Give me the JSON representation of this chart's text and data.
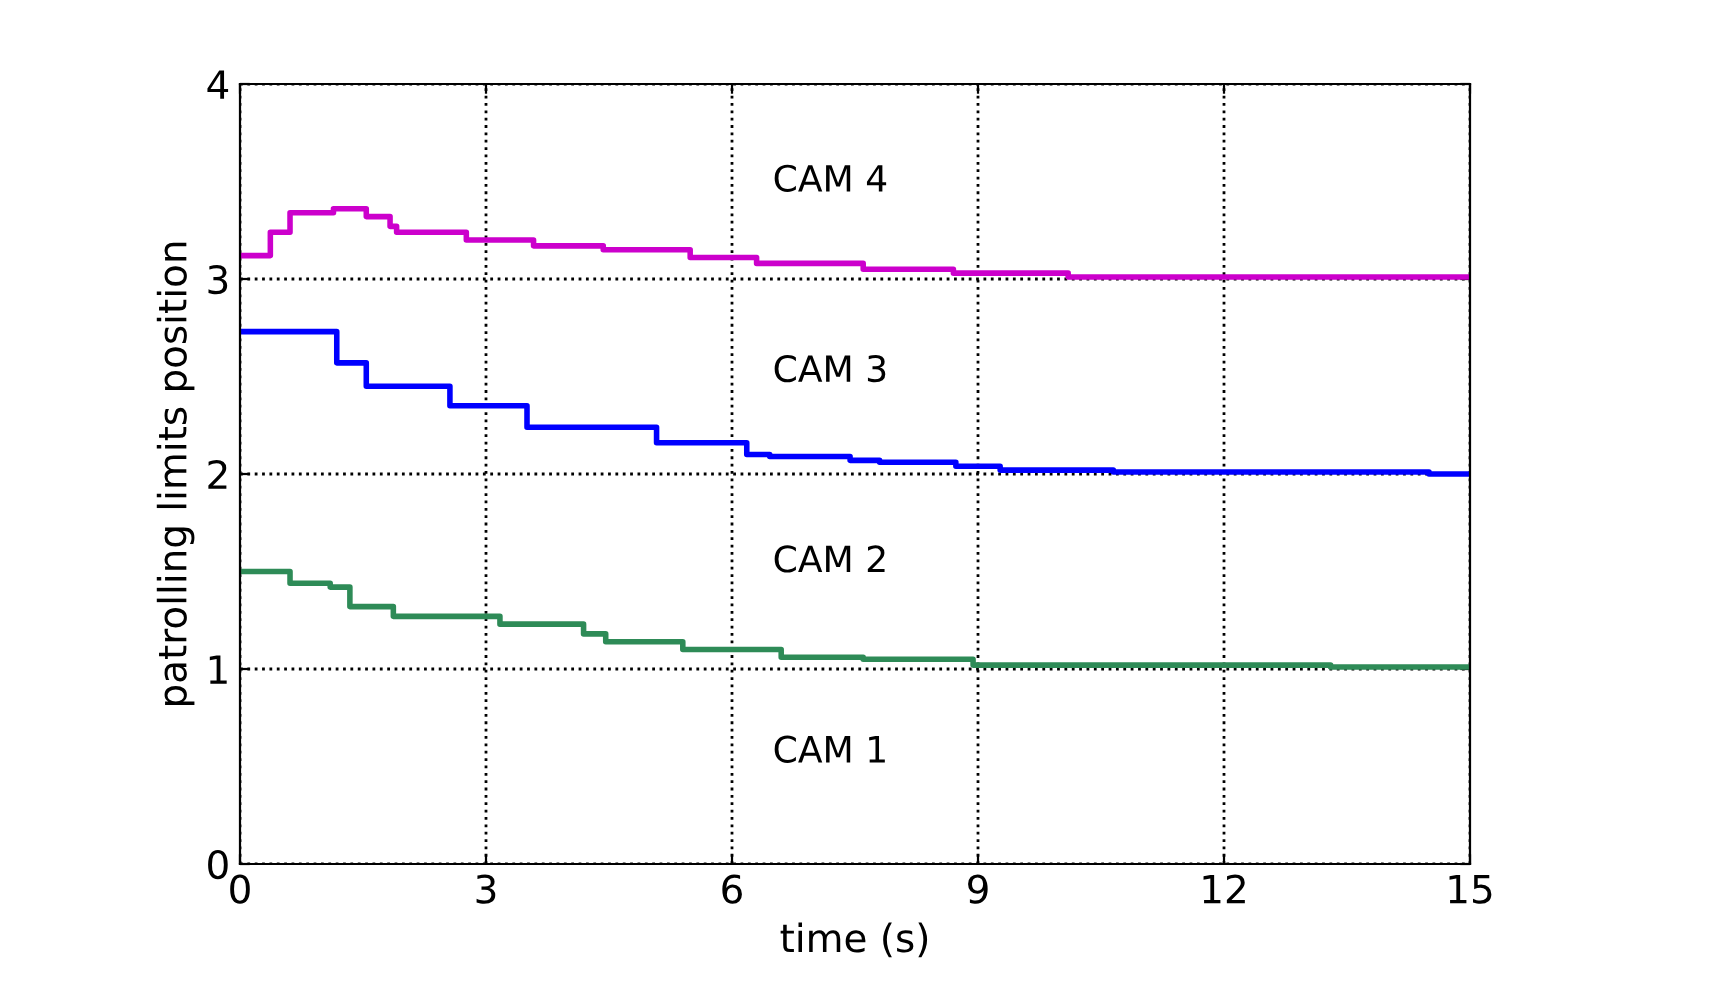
{
  "chart_data": {
    "type": "step",
    "xlabel": "time (s)",
    "ylabel": "patrolling limits position",
    "xlim": [
      0,
      15
    ],
    "ylim": [
      0,
      4
    ],
    "xticks": [
      0,
      3,
      6,
      9,
      12,
      15
    ],
    "yticks": [
      0,
      1,
      2,
      3,
      4
    ],
    "grid": true,
    "line_style": "solid",
    "marker": "none",
    "annotations": [
      "CAM 4",
      "CAM 3",
      "CAM 2",
      "CAM 1"
    ],
    "series": [
      {
        "color": "#cc00cc",
        "x": [
          0,
          0.37,
          0.61,
          1.14,
          1.54,
          1.83,
          1.91,
          2.76,
          3.58,
          4.43,
          5.49,
          6.3,
          7.6,
          8.7,
          10.1,
          15
        ],
        "values": [
          3.12,
          3.24,
          3.34,
          3.36,
          3.32,
          3.27,
          3.24,
          3.2,
          3.17,
          3.15,
          3.11,
          3.08,
          3.05,
          3.03,
          3.01,
          3.01
        ]
      },
      {
        "color": "#0000ff",
        "x": [
          0,
          1.18,
          1.54,
          2.56,
          3.5,
          5.08,
          6.18,
          6.46,
          7.44,
          7.8,
          8.73,
          9.27,
          10.65,
          14.5,
          15
        ],
        "values": [
          2.73,
          2.57,
          2.45,
          2.35,
          2.24,
          2.16,
          2.1,
          2.09,
          2.07,
          2.06,
          2.04,
          2.02,
          2.01,
          2.0,
          2.0
        ]
      },
      {
        "color": "#2e8b57",
        "x": [
          0,
          0.61,
          1.1,
          1.34,
          1.87,
          3.17,
          4.19,
          4.46,
          5.4,
          6.6,
          7.6,
          8.94,
          13.3,
          15
        ],
        "values": [
          1.5,
          1.44,
          1.42,
          1.32,
          1.27,
          1.23,
          1.18,
          1.14,
          1.1,
          1.06,
          1.05,
          1.02,
          1.01,
          1.01
        ]
      }
    ]
  }
}
